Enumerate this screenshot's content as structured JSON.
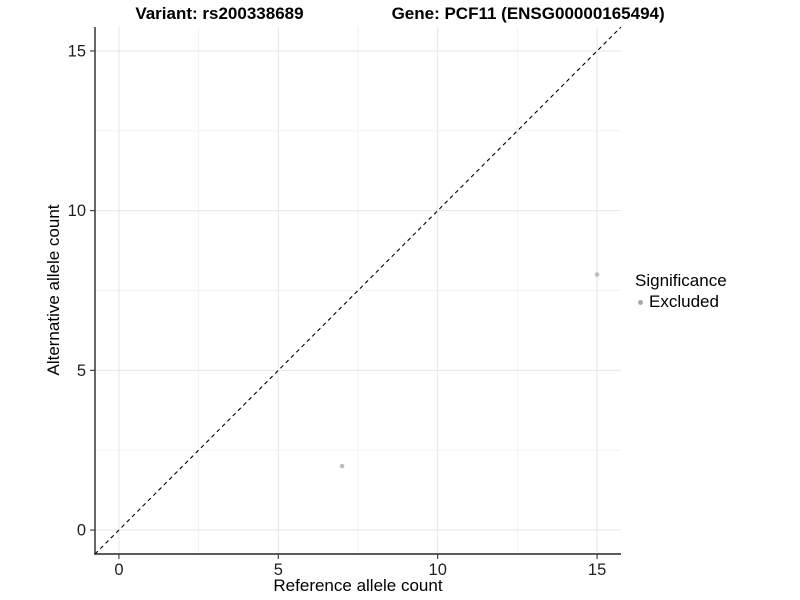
{
  "chart_data": {
    "type": "scatter",
    "title_left": "Variant: rs200338689",
    "title_right": "Gene: PCF11 (ENSG00000165494)",
    "xlabel": "Reference allele count",
    "ylabel": "Alternative allele count",
    "xlim": [
      -0.75,
      15.75
    ],
    "ylim": [
      -0.75,
      15.75
    ],
    "x_ticks": [
      0,
      5,
      10,
      15
    ],
    "y_ticks": [
      0,
      5,
      10,
      15
    ],
    "x_minor_ticks": [
      2.5,
      7.5,
      12.5
    ],
    "y_minor_ticks": [
      2.5,
      7.5,
      12.5
    ],
    "grid": true,
    "series": [
      {
        "name": "Excluded",
        "color": "#bdbdbd",
        "points": [
          {
            "x": 7,
            "y": 2
          },
          {
            "x": 15,
            "y": 8
          }
        ]
      }
    ],
    "identity_line": {
      "type": "dashed",
      "equation": "y = x",
      "color": "#000000"
    },
    "legend": {
      "title": "Significance",
      "position": "right",
      "items": [
        {
          "label": "Excluded",
          "color": "#a8a8a8"
        }
      ]
    }
  }
}
